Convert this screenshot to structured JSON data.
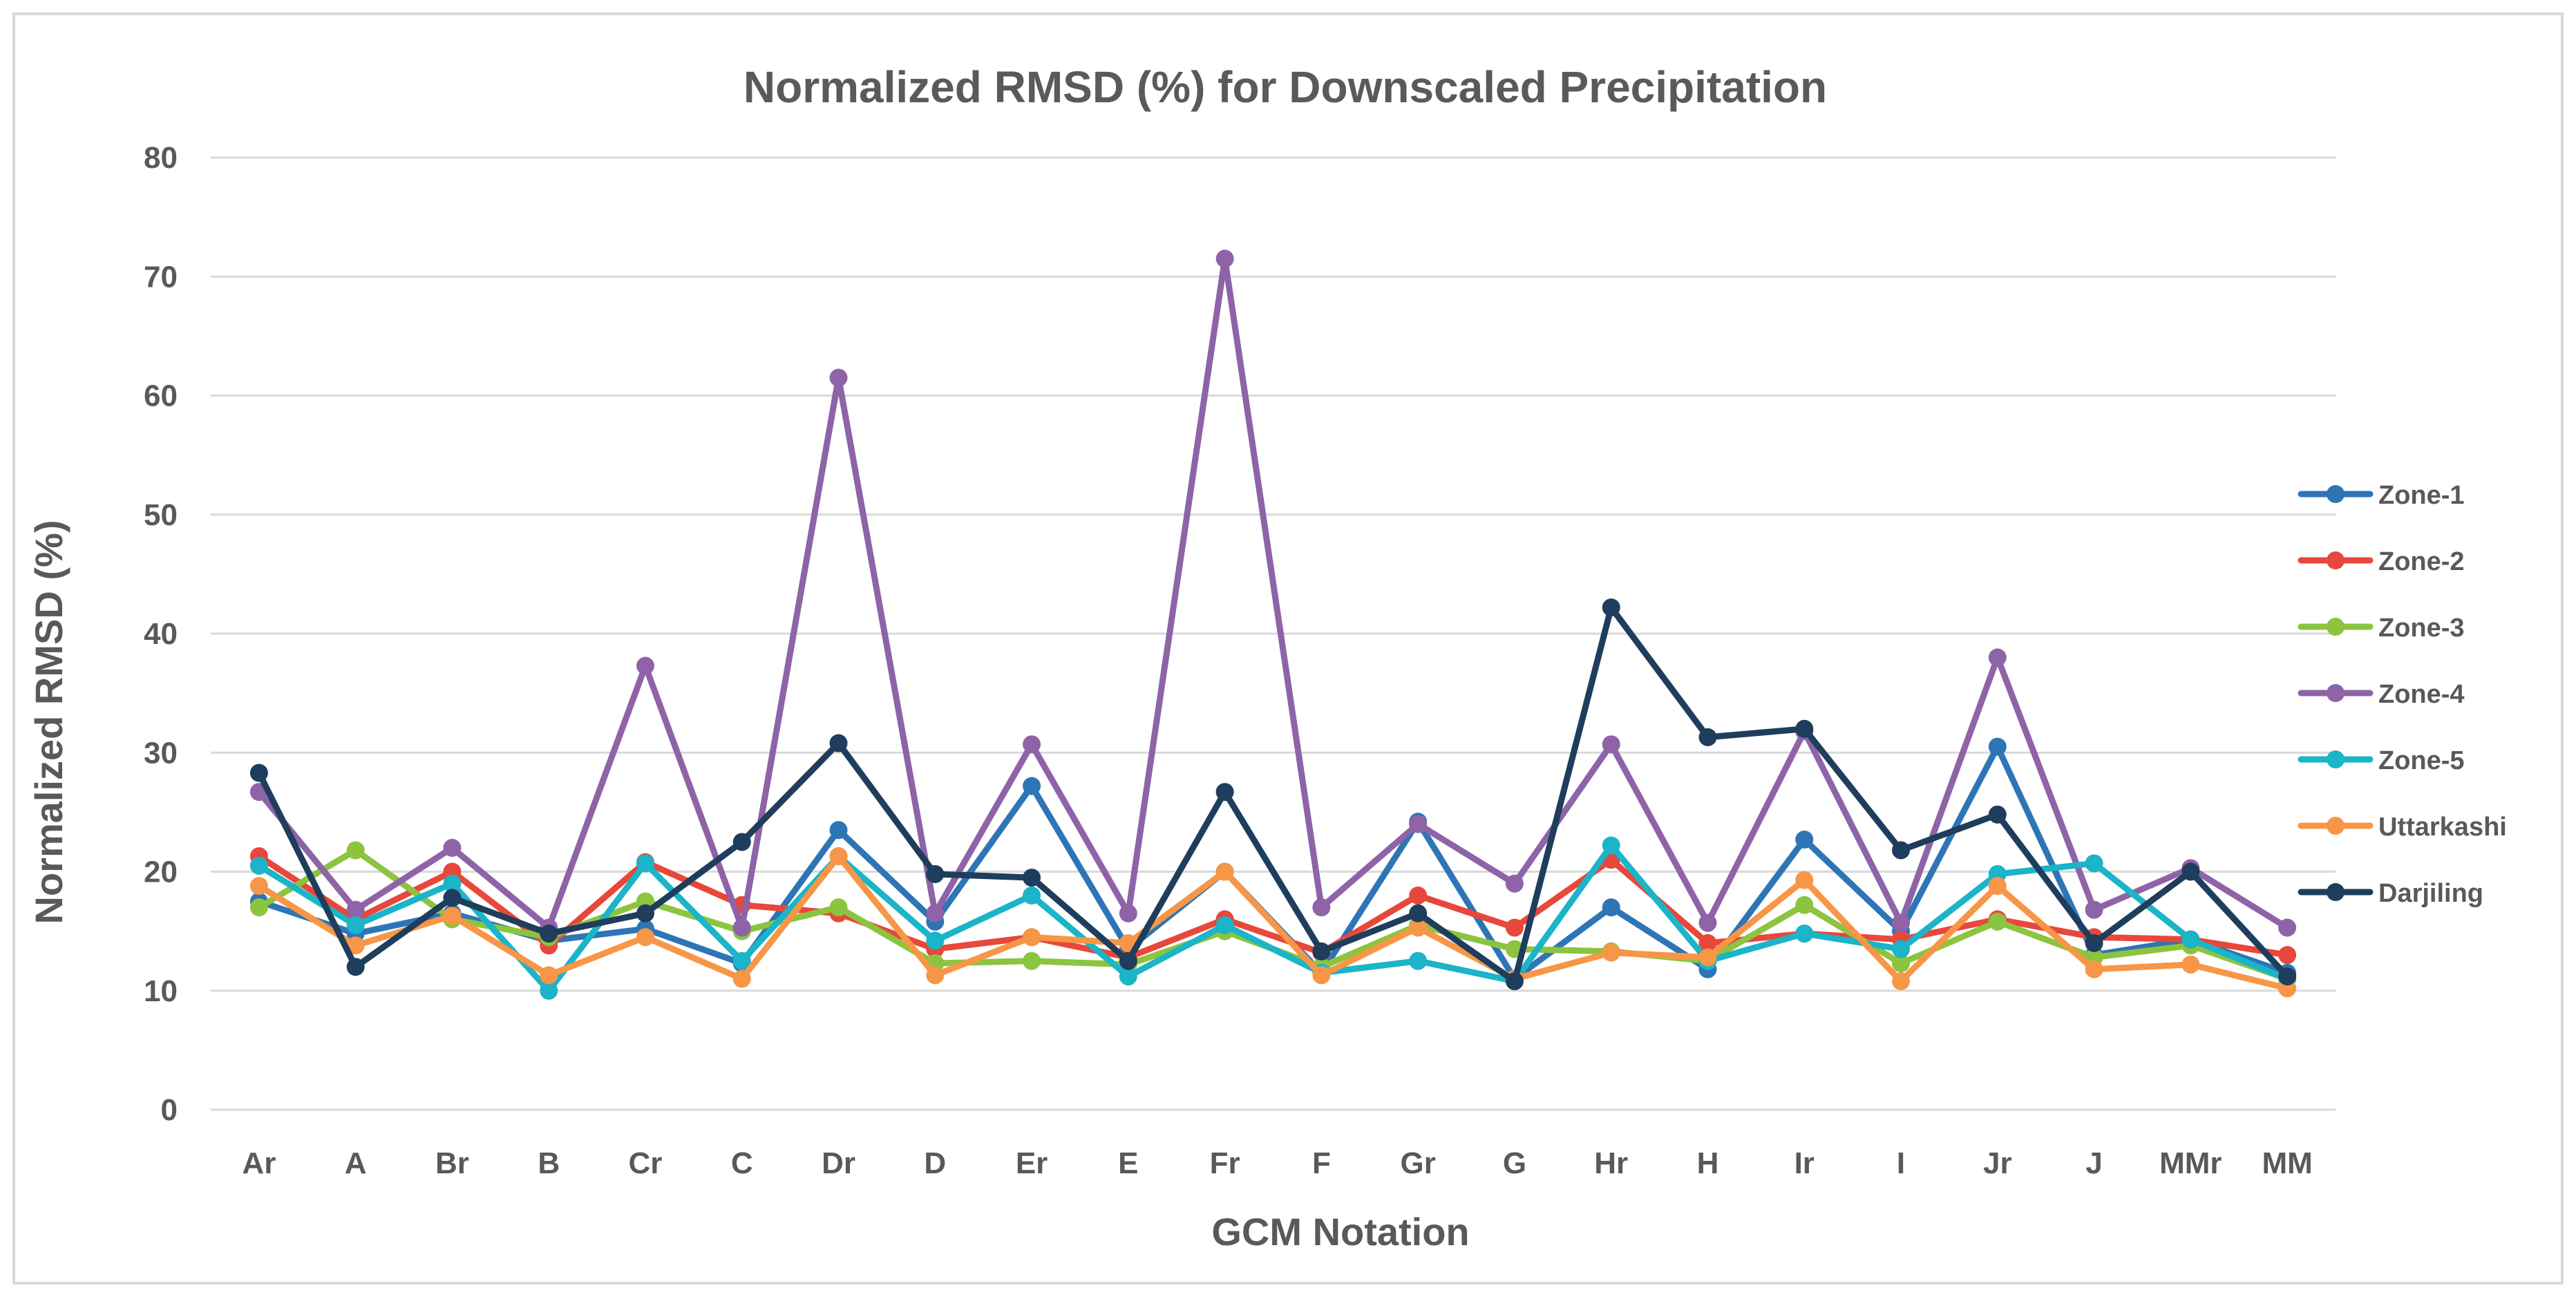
{
  "chart_data": {
    "type": "line",
    "title": "Normalized RMSD (%) for Downscaled Precipitation",
    "xlabel": "GCM Notation",
    "ylabel": "Normalized RMSD (%)",
    "ylim": [
      0,
      80
    ],
    "yticks": [
      0,
      10,
      20,
      30,
      40,
      50,
      60,
      70,
      80
    ],
    "grid": true,
    "legend_position": "right",
    "categories": [
      "Ar",
      "A",
      "Br",
      "B",
      "Cr",
      "C",
      "Dr",
      "D",
      "Er",
      "E",
      "Fr",
      "F",
      "Gr",
      "G",
      "Hr",
      "H",
      "Ir",
      "I",
      "Jr",
      "J",
      "MMr",
      "MM"
    ],
    "series": [
      {
        "name": "Zone-1",
        "color": "#2e75b6",
        "values": [
          17.5,
          14.8,
          16.5,
          14.2,
          15.2,
          12.3,
          23.5,
          15.8,
          27.2,
          13.5,
          20.0,
          11.5,
          24.2,
          11.0,
          17.0,
          11.8,
          22.7,
          15.0,
          30.5,
          13.0,
          14.3,
          11.5
        ]
      },
      {
        "name": "Zone-2",
        "color": "#e8473b",
        "values": [
          21.3,
          16.0,
          20.0,
          13.8,
          20.8,
          17.2,
          16.5,
          13.5,
          14.5,
          12.8,
          16.0,
          13.2,
          18.0,
          15.3,
          21.0,
          14.0,
          14.8,
          14.3,
          16.0,
          14.5,
          14.3,
          13.0
        ]
      },
      {
        "name": "Zone-3",
        "color": "#8cc43f",
        "values": [
          17.0,
          21.8,
          16.0,
          14.5,
          17.5,
          15.0,
          17.0,
          12.3,
          12.5,
          12.2,
          15.0,
          12.0,
          15.5,
          13.5,
          13.3,
          12.5,
          17.2,
          12.3,
          15.8,
          12.8,
          13.8,
          11.0
        ]
      },
      {
        "name": "Zone-4",
        "color": "#8e63a8",
        "values": [
          26.7,
          16.8,
          22.0,
          15.3,
          37.3,
          15.3,
          61.5,
          16.5,
          30.7,
          16.5,
          71.5,
          17.0,
          24.0,
          19.0,
          30.7,
          15.7,
          31.8,
          15.7,
          38.0,
          16.8,
          20.3,
          15.3
        ]
      },
      {
        "name": "Zone-5",
        "color": "#1bb4c8",
        "values": [
          20.5,
          15.5,
          19.0,
          10.0,
          20.7,
          12.5,
          21.3,
          14.2,
          18.0,
          11.2,
          15.5,
          11.5,
          12.5,
          10.8,
          22.2,
          12.5,
          14.8,
          13.5,
          19.8,
          20.7,
          14.3,
          11.0
        ]
      },
      {
        "name": "Uttarkashi",
        "color": "#f79646",
        "values": [
          18.8,
          13.8,
          16.3,
          11.3,
          14.5,
          11.0,
          21.3,
          11.3,
          14.5,
          14.0,
          20.0,
          11.3,
          15.3,
          11.0,
          13.2,
          12.8,
          19.3,
          10.8,
          18.8,
          11.8,
          12.2,
          10.2
        ]
      },
      {
        "name": "Darjiling",
        "color": "#1f3d5c",
        "values": [
          28.3,
          12.0,
          17.8,
          14.8,
          16.5,
          22.5,
          30.8,
          19.8,
          19.5,
          12.5,
          26.7,
          13.3,
          16.5,
          10.8,
          42.2,
          31.3,
          32.0,
          21.8,
          24.8,
          14.0,
          20.0,
          11.2
        ]
      }
    ]
  }
}
